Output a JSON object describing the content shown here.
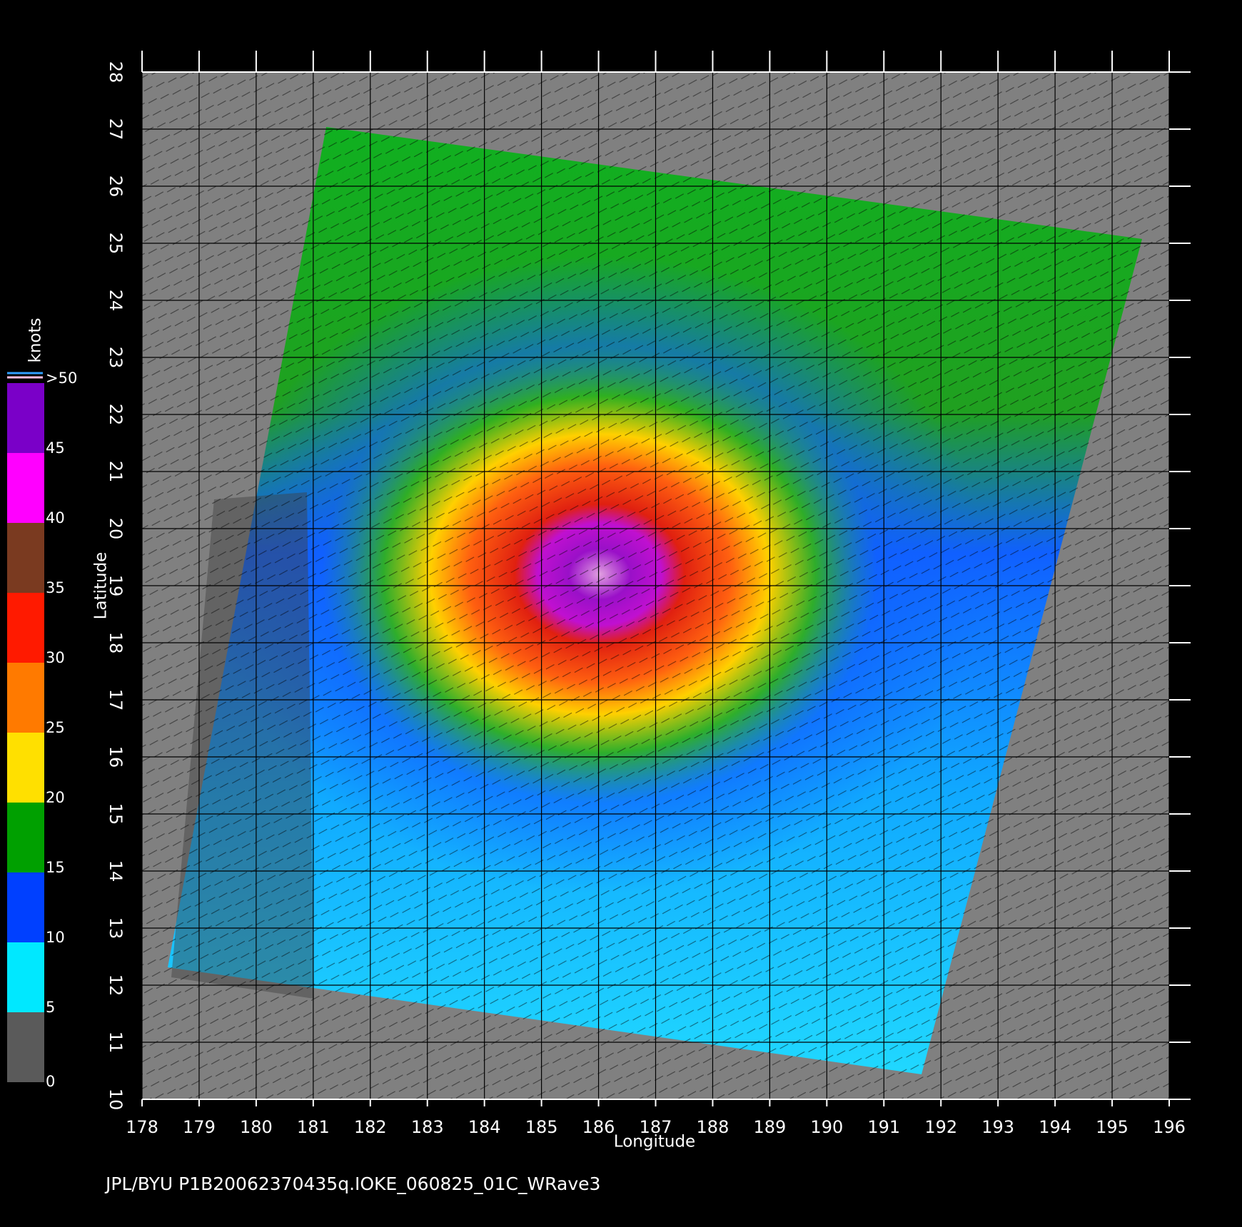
{
  "chart_data": {
    "type": "map",
    "xlabel": "Longitude",
    "ylabel": "Latitude",
    "xlim": [
      178,
      196
    ],
    "ylim": [
      10,
      28
    ],
    "xticks": [
      178,
      179,
      180,
      181,
      182,
      183,
      184,
      185,
      186,
      187,
      188,
      189,
      190,
      191,
      192,
      193,
      194,
      195,
      196
    ],
    "yticks": [
      10,
      11,
      12,
      13,
      14,
      15,
      16,
      17,
      18,
      19,
      20,
      21,
      22,
      23,
      24,
      25,
      26,
      27,
      28
    ],
    "grid": true,
    "colorbar": {
      "label": "knots",
      "ticks": [
        0,
        5,
        10,
        15,
        20,
        25,
        30,
        35,
        40,
        45,
        {
          "value": 50,
          "label": ">50"
        }
      ],
      "colors": [
        "#5a5a5a",
        "#00e8ff",
        "#0040ff",
        "#00a000",
        "#ffe000",
        "#ff7a00",
        "#ff1a00",
        "#7a3a20",
        "#ff00ff",
        "#7a00c8"
      ]
    },
    "footer": "JPL/BYU  P1B20062370435q.IOKE_060825_01C_WRave3"
  }
}
